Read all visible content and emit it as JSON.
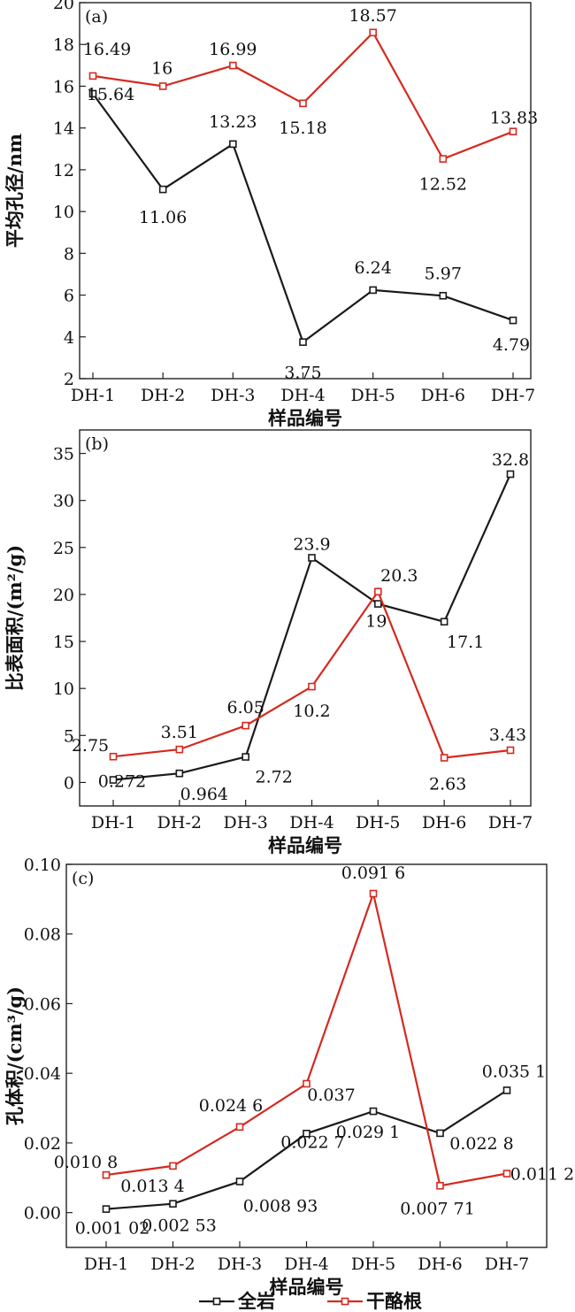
{
  "chart_data": [
    {
      "type": "line",
      "panel_label": "(a)",
      "categories": [
        "DH-1",
        "DH-2",
        "DH-3",
        "DH-4",
        "DH-5",
        "DH-6",
        "DH-7"
      ],
      "xlabel": "样品编号",
      "ylabel": "平均孔径/nm",
      "ylim": [
        2,
        20
      ],
      "yticks": [
        "2",
        "4",
        "6",
        "8",
        "10",
        "12",
        "14",
        "16",
        "18",
        "20"
      ],
      "series": [
        {
          "name": "全岩",
          "color": "#1a1a1a",
          "values": [
            15.64,
            11.06,
            13.23,
            3.75,
            6.24,
            5.97,
            4.79
          ],
          "labels": [
            "15.64",
            "11.06",
            "13.23",
            "3.75",
            "6.24",
            "5.97",
            "4.79"
          ]
        },
        {
          "name": "干酪根",
          "color": "#d42a20",
          "values": [
            16.49,
            16,
            16.99,
            15.18,
            18.57,
            12.52,
            13.83
          ],
          "labels": [
            "16.49",
            "16",
            "16.99",
            "15.18",
            "18.57",
            "12.52",
            "13.83"
          ]
        }
      ]
    },
    {
      "type": "line",
      "panel_label": "(b)",
      "categories": [
        "DH-1",
        "DH-2",
        "DH-3",
        "DH-4",
        "DH-5",
        "DH-6",
        "DH-7"
      ],
      "xlabel": "样品编号",
      "ylabel": "比表面积/(m²/g)",
      "ylim": [
        -2.5,
        37.5
      ],
      "yticks": [
        "0",
        "5",
        "10",
        "15",
        "20",
        "25",
        "30",
        "35"
      ],
      "series": [
        {
          "name": "全岩",
          "color": "#1a1a1a",
          "values": [
            0.272,
            0.964,
            2.72,
            23.9,
            19,
            17.1,
            32.8
          ],
          "labels": [
            "0.272",
            "0.964",
            "2.72",
            "23.9",
            "19",
            "17.1",
            "32.8"
          ]
        },
        {
          "name": "干酪根",
          "color": "#d42a20",
          "values": [
            2.75,
            3.51,
            6.05,
            10.2,
            20.3,
            2.63,
            3.43
          ],
          "labels": [
            "2.75",
            "3.51",
            "6.05",
            "10.2",
            "20.3",
            "2.63",
            "3.43"
          ]
        }
      ]
    },
    {
      "type": "line",
      "panel_label": "(c)",
      "categories": [
        "DH-1",
        "DH-2",
        "DH-3",
        "DH-4",
        "DH-5",
        "DH-6",
        "DH-7"
      ],
      "xlabel": "样品编号",
      "ylabel": "孔体积/(cm³/g)",
      "ylim": [
        -0.01,
        0.1
      ],
      "yticks": [
        "0.00",
        "0.02",
        "0.04",
        "0.06",
        "0.08",
        "0.10"
      ],
      "series": [
        {
          "name": "全岩",
          "color": "#1a1a1a",
          "values": [
            0.00102,
            0.00253,
            0.00893,
            0.0227,
            0.0291,
            0.0228,
            0.0351
          ],
          "labels": [
            "0.001 02",
            "0.002 53",
            "0.008 93",
            "0.022 7",
            "0.029 1",
            "0.022 8",
            "0.035 1"
          ]
        },
        {
          "name": "干酪根",
          "color": "#d42a20",
          "values": [
            0.0108,
            0.0134,
            0.0246,
            0.037,
            0.0916,
            0.00771,
            0.0112
          ],
          "labels": [
            "0.010 8",
            "0.013 4",
            "0.024 6",
            "0.037",
            "0.091 6",
            "0.007 71",
            "0.011 2"
          ]
        }
      ]
    }
  ],
  "legend": {
    "position": "bottom-center",
    "items": [
      {
        "label": "全岩",
        "color": "#1a1a1a"
      },
      {
        "label": "干酪根",
        "color": "#d42a20"
      }
    ]
  }
}
